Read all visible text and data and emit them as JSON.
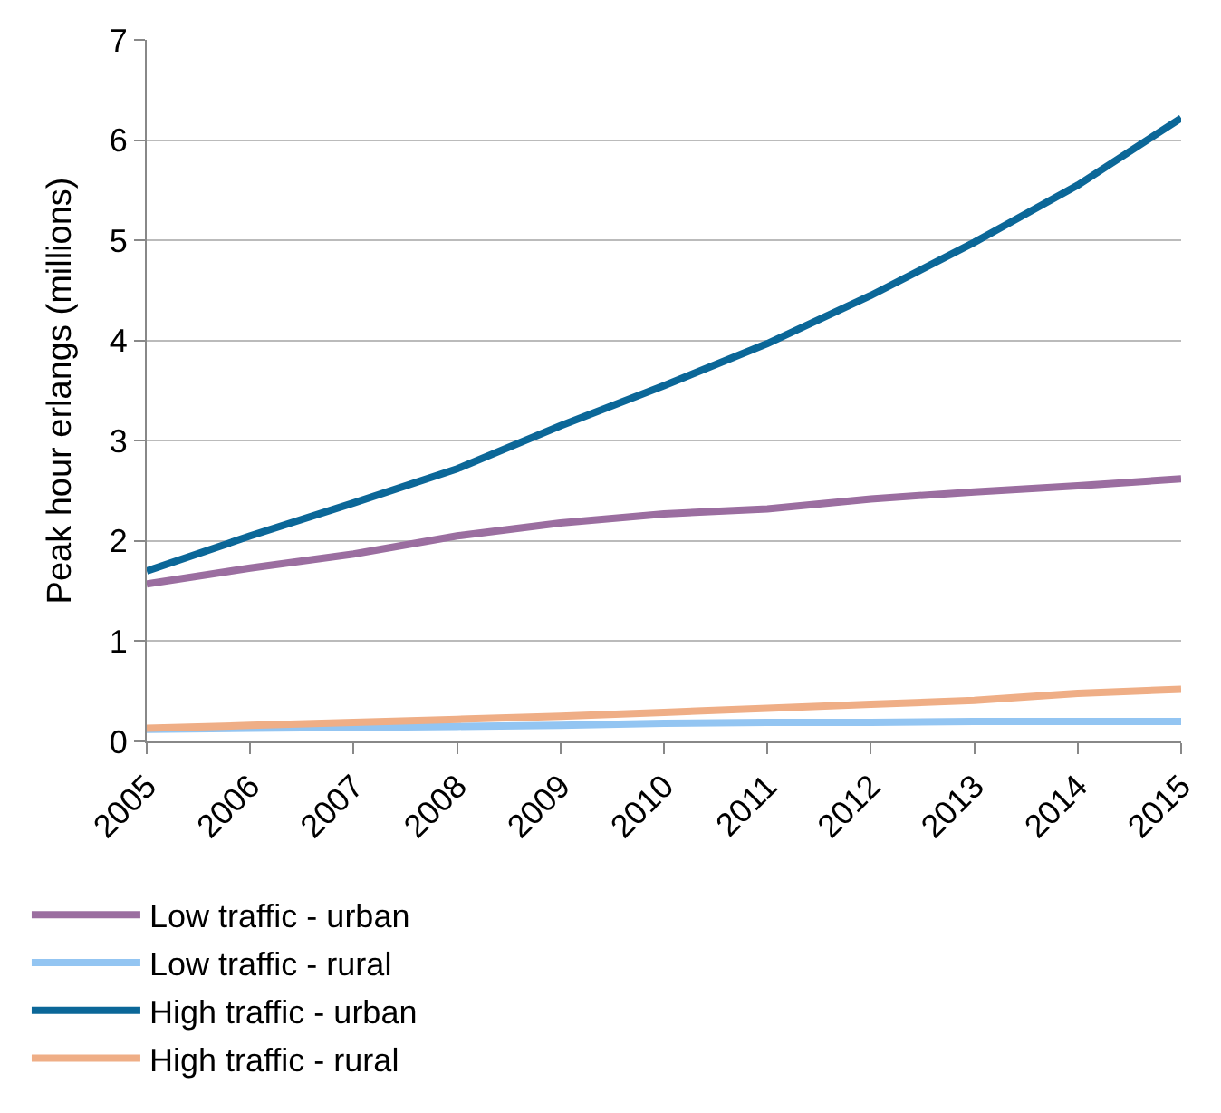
{
  "chart_data": {
    "type": "line",
    "ylabel": "Peak hour erlangs (millions)",
    "categories": [
      "2005",
      "2006",
      "2007",
      "2008",
      "2009",
      "2010",
      "2011",
      "2012",
      "2013",
      "2014",
      "2015"
    ],
    "series": [
      {
        "name": "Low traffic - urban",
        "color": "#9b6ea0",
        "values": [
          1.57,
          1.73,
          1.87,
          2.05,
          2.18,
          2.27,
          2.32,
          2.42,
          2.49,
          2.55,
          2.62
        ]
      },
      {
        "name": "Low traffic - rural",
        "color": "#93c5f2",
        "values": [
          0.12,
          0.13,
          0.14,
          0.15,
          0.16,
          0.18,
          0.19,
          0.19,
          0.2,
          0.2,
          0.2
        ]
      },
      {
        "name": "High traffic - urban",
        "color": "#0b6798",
        "values": [
          1.7,
          2.05,
          2.38,
          2.72,
          3.15,
          3.55,
          3.97,
          4.45,
          4.98,
          5.55,
          6.22
        ]
      },
      {
        "name": "High traffic - rural",
        "color": "#efae86",
        "values": [
          0.13,
          0.16,
          0.19,
          0.22,
          0.25,
          0.29,
          0.33,
          0.37,
          0.41,
          0.48,
          0.52
        ]
      }
    ],
    "ylim": [
      0,
      7
    ],
    "yticks": [
      0,
      1,
      2,
      3,
      4,
      5,
      6,
      7
    ],
    "grid": "y",
    "legend": "bottom",
    "marker": "none",
    "line_style": "solid"
  }
}
